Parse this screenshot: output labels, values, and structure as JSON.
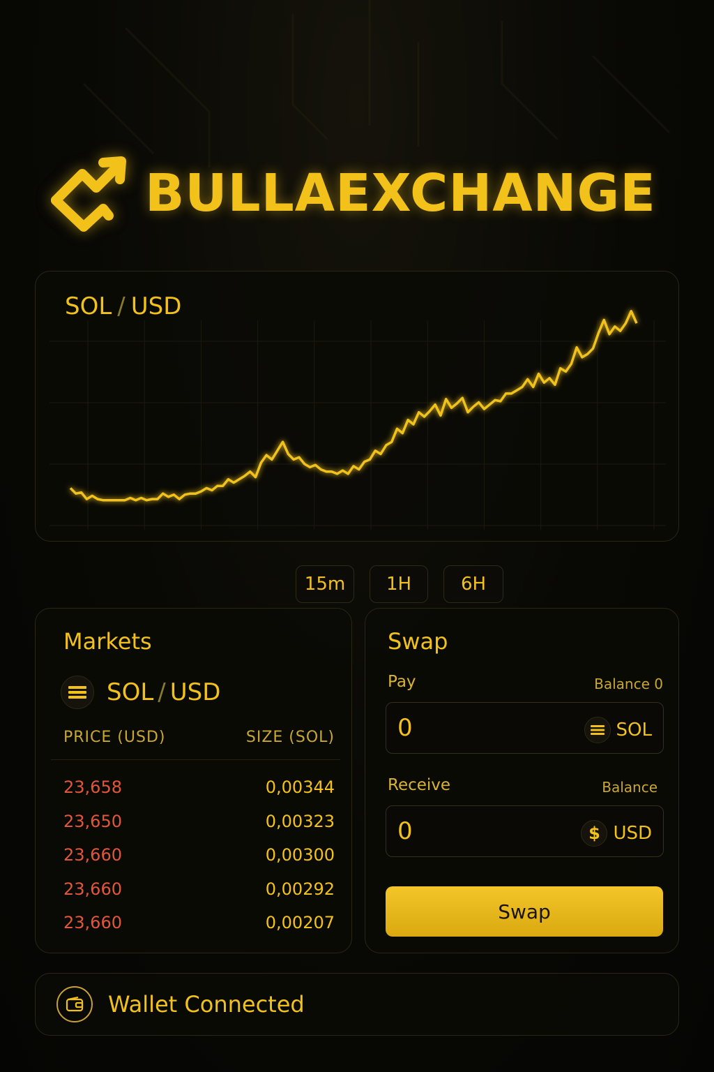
{
  "brand": {
    "name": "BULLAEXCHANGE",
    "logo_icon": "trend-arrow-logo-icon"
  },
  "colors": {
    "accent": "#f2c21b",
    "sell_red": "#e2563a",
    "background": "#070704"
  },
  "chart_panel": {
    "pair_base": "SOL",
    "pair_sep": "/",
    "pair_quote": "USD"
  },
  "chart_data": {
    "type": "line",
    "title": "SOL / USD",
    "xlabel": "",
    "ylabel": "",
    "grid": true,
    "series": [
      {
        "values": [
          22,
          17,
          18,
          12,
          15,
          12,
          11,
          11,
          11,
          11,
          11,
          13,
          11,
          13,
          11,
          12,
          12,
          17,
          14,
          16,
          12,
          16,
          17,
          17,
          19,
          22,
          20,
          24,
          24,
          30,
          27,
          30,
          33,
          37,
          32,
          45,
          52,
          48,
          56,
          64,
          53,
          48,
          50,
          44,
          41,
          43,
          39,
          37,
          37,
          35,
          38,
          35,
          42,
          39,
          46,
          48,
          56,
          53,
          61,
          64,
          76,
          72,
          84,
          80,
          91,
          87,
          92,
          98,
          88,
          103,
          95,
          99,
          104,
          91,
          96,
          100,
          94,
          98,
          102,
          101,
          108,
          108,
          111,
          114,
          121,
          114,
          126,
          118,
          122,
          116,
          131,
          128,
          135,
          150,
          141,
          144,
          149,
          163,
          175,
          162,
          169,
          165,
          172,
          183,
          172
        ]
      }
    ],
    "ylim": [
      0,
      200
    ]
  },
  "timeframes": [
    "15m",
    "1H",
    "6H"
  ],
  "markets": {
    "title": "Markets",
    "pair_base": "SOL",
    "pair_sep": "/",
    "pair_quote": "USD",
    "pair_icon": "menu-lines-icon",
    "col_price": "PRICE (USD)",
    "col_size": "SIZE (SOL)",
    "orders": [
      {
        "price": "23,658",
        "size": "0,00344"
      },
      {
        "price": "23,650",
        "size": "0,00323"
      },
      {
        "price": "23,660",
        "size": "0,00300"
      },
      {
        "price": "23,660",
        "size": "0,00292"
      },
      {
        "price": "23,660",
        "size": "0,00207"
      }
    ]
  },
  "swap": {
    "title": "Swap",
    "pay": {
      "label": "Pay",
      "balance": "Balance 0",
      "value": "0",
      "token": "SOL",
      "token_icon": "menu-lines-icon"
    },
    "receive": {
      "label": "Receive",
      "balance": "Balance",
      "value": "0",
      "token": "USD",
      "token_icon": "dollar-icon"
    },
    "button_label": "Swap"
  },
  "wallet": {
    "status": "Wallet Connected",
    "icon": "wallet-icon"
  }
}
